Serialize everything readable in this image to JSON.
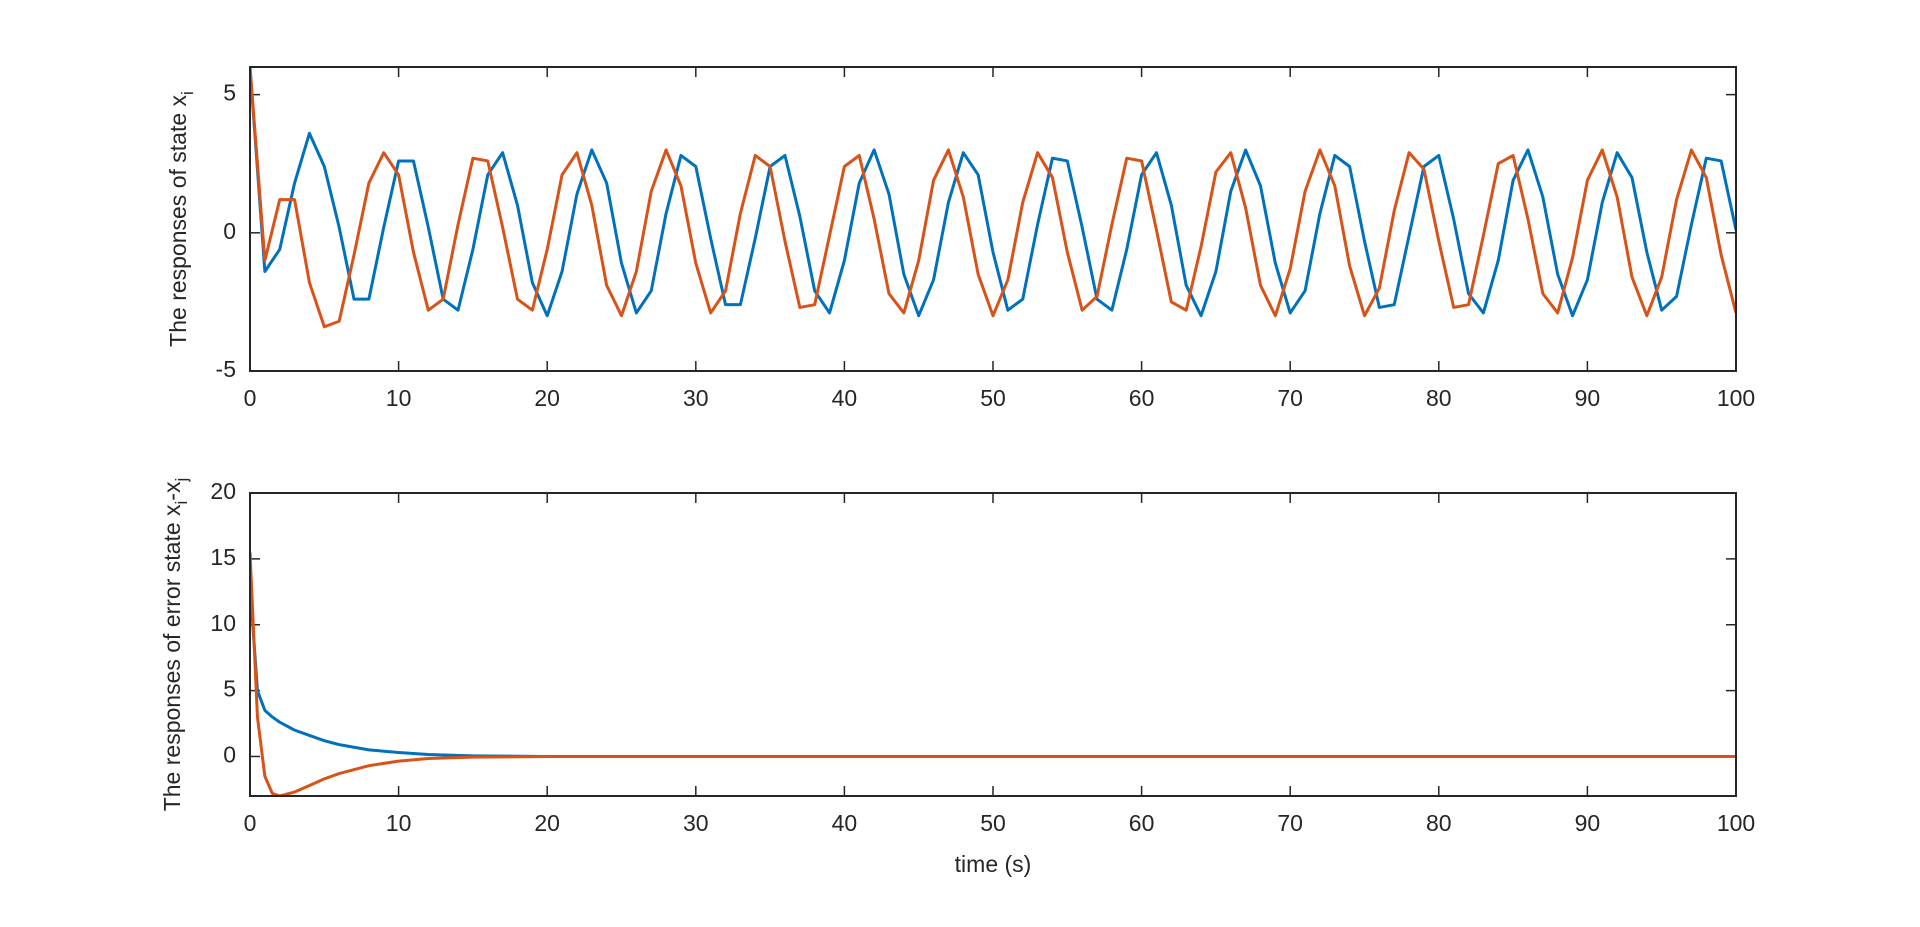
{
  "chart_data": [
    {
      "type": "line",
      "ylabel_parts": [
        "The responses of state x",
        "i"
      ],
      "x": [
        0,
        1,
        2,
        3,
        4,
        5,
        6,
        7,
        8,
        9,
        10,
        11,
        12,
        13,
        14,
        15,
        16,
        17,
        18,
        19,
        20,
        21,
        22,
        23,
        24,
        25,
        26,
        27,
        28,
        29,
        30,
        31,
        32,
        33,
        34,
        35,
        36,
        37,
        38,
        39,
        40,
        41,
        42,
        43,
        44,
        45,
        46,
        47,
        48,
        49,
        50,
        51,
        52,
        53,
        54,
        55,
        56,
        57,
        58,
        59,
        60,
        61,
        62,
        63,
        64,
        65,
        66,
        67,
        68,
        69,
        70,
        71,
        72,
        73,
        74,
        75,
        76,
        77,
        78,
        79,
        80,
        81,
        82,
        83,
        84,
        85,
        86,
        87,
        88,
        89,
        90,
        91,
        92,
        93,
        94,
        95,
        96,
        97,
        98,
        99,
        100
      ],
      "series": [
        {
          "color": "#0072BD",
          "values": [
            6,
            -1.4,
            -0.6,
            1.8,
            3.6,
            2.4,
            0.2,
            -2.4,
            -2.4,
            0.2,
            2.6,
            2.6,
            0.2,
            -2.4,
            -2.8,
            -0.6,
            2.1,
            2.9,
            1.0,
            -1.8,
            -3.0,
            -1.4,
            1.4,
            3.0,
            1.8,
            -1.1,
            -2.9,
            -2.1,
            0.7,
            2.8,
            2.4,
            -0.2,
            -2.6,
            -2.6,
            -0.2,
            2.4,
            2.8,
            0.6,
            -2.1,
            -2.9,
            -1.0,
            1.8,
            3.0,
            1.4,
            -1.5,
            -3.0,
            -1.7,
            1.1,
            2.9,
            2.1,
            -0.7,
            -2.8,
            -2.4,
            0.3,
            2.7,
            2.6,
            0.2,
            -2.4,
            -2.8,
            -0.6,
            2.1,
            2.9,
            1.0,
            -1.9,
            -3.0,
            -1.4,
            1.5,
            3.0,
            1.7,
            -1.1,
            -2.9,
            -2.1,
            0.7,
            2.8,
            2.4,
            -0.3,
            -2.7,
            -2.6,
            -0.1,
            2.4,
            2.8,
            0.5,
            -2.2,
            -2.9,
            -1.0,
            1.9,
            3.0,
            1.3,
            -1.5,
            -3.0,
            -1.7,
            1.1,
            2.9,
            2.0,
            -0.7,
            -2.8,
            -2.3,
            0.3,
            2.7,
            2.6,
            0.1
          ]
        },
        {
          "color": "#D95319",
          "values": [
            6,
            -1.0,
            1.2,
            1.2,
            -1.8,
            -3.4,
            -3.2,
            -0.8,
            1.8,
            2.9,
            2.1,
            -0.7,
            -2.8,
            -2.4,
            0.3,
            2.7,
            2.6,
            0.2,
            -2.4,
            -2.8,
            -0.6,
            2.1,
            2.9,
            1.0,
            -1.9,
            -3.0,
            -1.4,
            1.5,
            3.0,
            1.7,
            -1.1,
            -2.9,
            -2.1,
            0.7,
            2.8,
            2.4,
            -0.3,
            -2.7,
            -2.6,
            -0.1,
            2.4,
            2.8,
            0.5,
            -2.2,
            -2.9,
            -1.0,
            1.9,
            3.0,
            1.3,
            -1.5,
            -3.0,
            -1.7,
            1.1,
            2.9,
            2.0,
            -0.7,
            -2.8,
            -2.3,
            0.3,
            2.7,
            2.6,
            0.1,
            -2.5,
            -2.8,
            -0.5,
            2.2,
            2.9,
            0.9,
            -1.9,
            -3.0,
            -1.3,
            1.5,
            3.0,
            1.7,
            -1.2,
            -3.0,
            -2.0,
            0.8,
            2.9,
            2.3,
            -0.3,
            -2.7,
            -2.6,
            -0.1,
            2.5,
            2.8,
            0.5,
            -2.2,
            -2.9,
            -0.9,
            1.9,
            3.0,
            1.3,
            -1.6,
            -3.0,
            -1.6,
            1.2,
            3.0,
            2.0,
            -0.8,
            -2.9
          ]
        }
      ],
      "xlim": [
        0,
        100
      ],
      "xticks": [
        0,
        10,
        20,
        30,
        40,
        50,
        60,
        70,
        80,
        90,
        100
      ],
      "ylim": [
        -5,
        6
      ],
      "yticks": [
        -5,
        0,
        5
      ]
    },
    {
      "type": "line",
      "ylabel_parts": [
        "The responses of error state x",
        "i",
        "-x",
        "j"
      ],
      "xlabel": "time (s)",
      "x": [
        0,
        0.5,
        1,
        1.5,
        2,
        3,
        4,
        5,
        6,
        8,
        10,
        12,
        15,
        20,
        25,
        30,
        100
      ],
      "series": [
        {
          "color": "#0072BD",
          "values": [
            13,
            5,
            3.5,
            3.0,
            2.6,
            2.0,
            1.6,
            1.2,
            0.9,
            0.5,
            0.3,
            0.15,
            0.05,
            0,
            0,
            0,
            0
          ]
        },
        {
          "color": "#D95319",
          "values": [
            15.5,
            3,
            -1.5,
            -2.8,
            -3.0,
            -2.7,
            -2.2,
            -1.7,
            -1.3,
            -0.7,
            -0.35,
            -0.15,
            -0.05,
            0,
            0,
            0,
            0
          ]
        }
      ],
      "xlim": [
        0,
        100
      ],
      "xticks": [
        0,
        10,
        20,
        30,
        40,
        50,
        60,
        70,
        80,
        90,
        100
      ],
      "ylim": [
        -3,
        20
      ],
      "yticks": [
        0,
        5,
        10,
        15,
        20
      ]
    }
  ]
}
